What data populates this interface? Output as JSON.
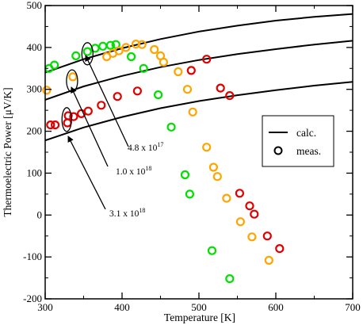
{
  "chart_data": {
    "type": "scatter",
    "xlabel": "Temperature [K]",
    "ylabel": "Thermoelectric Power [μV/K]",
    "xlim": [
      300,
      700
    ],
    "ylim": [
      -200,
      500
    ],
    "x_ticks": [
      "300",
      "400",
      "500",
      "600",
      "700"
    ],
    "y_ticks": [
      "-200",
      "-100",
      "0",
      "100",
      "200",
      "300",
      "400",
      "500"
    ],
    "grid": false,
    "legend": {
      "placement": "right",
      "entries": [
        {
          "label": "calc.",
          "marker": "line"
        },
        {
          "label": "meas.",
          "marker": "open-circle"
        }
      ]
    },
    "calc_curves": [
      {
        "concentration": "4.8 x 10^17",
        "x": [
          300,
          350,
          400,
          450,
          500,
          550,
          600,
          650,
          700
        ],
        "y": [
          340,
          372,
          398,
          420,
          438,
          452,
          464,
          473,
          480
        ]
      },
      {
        "concentration": "1.0 x 10^18",
        "x": [
          300,
          350,
          400,
          450,
          500,
          550,
          600,
          650,
          700
        ],
        "y": [
          275,
          307,
          332,
          353,
          370,
          384,
          396,
          407,
          416
        ]
      },
      {
        "concentration": "3.1 x 10^18",
        "x": [
          300,
          350,
          400,
          450,
          500,
          550,
          600,
          650,
          700
        ],
        "y": [
          178,
          209,
          234,
          255,
          272,
          286,
          298,
          309,
          318
        ]
      }
    ],
    "meas_series": [
      {
        "color": "#00e000",
        "x": [
          305,
          312,
          340,
          355,
          365,
          375,
          385,
          392,
          412,
          428,
          447,
          464,
          482,
          488,
          517,
          540
        ],
        "y": [
          350,
          358,
          380,
          390,
          398,
          403,
          405,
          407,
          378,
          350,
          287,
          210,
          96,
          50,
          -85,
          -152
        ]
      },
      {
        "color": "#ffa500",
        "x": [
          302,
          336,
          380,
          388,
          396,
          405,
          418,
          426,
          442,
          450,
          454,
          473,
          485,
          492,
          510,
          519,
          524,
          536,
          554,
          569,
          591
        ],
        "y": [
          298,
          330,
          378,
          386,
          392,
          400,
          408,
          407,
          395,
          380,
          365,
          342,
          300,
          246,
          162,
          114,
          92,
          40,
          -16,
          -52,
          -108
        ]
      },
      {
        "color": "#e00000",
        "x": [
          307,
          313,
          329,
          330,
          337,
          347,
          356,
          373,
          394,
          420,
          490,
          510,
          528,
          540,
          553,
          566,
          572,
          589,
          605
        ],
        "y": [
          215,
          215,
          220,
          237,
          235,
          242,
          248,
          262,
          283,
          296,
          345,
          372,
          303,
          285,
          52,
          22,
          2,
          -50,
          -80
        ]
      }
    ],
    "annotations": [
      {
        "label": "4.8 x 10",
        "exp": "17"
      },
      {
        "label": "1.0 x 10",
        "exp": "18"
      },
      {
        "label": "3.1 x 10",
        "exp": "18"
      }
    ]
  }
}
